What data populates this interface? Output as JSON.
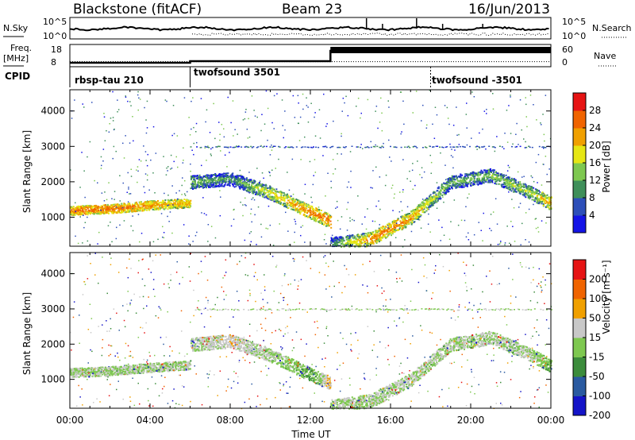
{
  "header": {
    "title": "Blackstone (fitACF)",
    "beam": "Beam 23",
    "date": "16/Jun/2013"
  },
  "panels": {
    "noise": {
      "left_label": "N.Sky",
      "right_label": "N.Search",
      "left_ticks": [
        "10^5",
        "10^0"
      ],
      "right_ticks": [
        "10^5",
        "10^0"
      ]
    },
    "freq": {
      "left_label_1": "Freq.",
      "left_label_2": "[MHz]",
      "right_label": "Nave",
      "left_ticks": [
        "18",
        "8"
      ],
      "right_ticks": [
        "60",
        "0"
      ]
    },
    "cpid": {
      "label": "CPID",
      "segments": [
        {
          "name": "rbsp-tau 210",
          "start_hour": 0
        },
        {
          "name": "twofsound 3501",
          "start_hour": 6
        },
        {
          "name": "twofsound -3501",
          "start_hour": 18
        }
      ]
    },
    "power": {
      "ylabel": "Slant Range [km]",
      "yticks": [
        "4000",
        "3000",
        "2000",
        "1000"
      ],
      "colorbar_label": "Power [dB]",
      "colorbar_ticks": [
        "28",
        "24",
        "20",
        "16",
        "12",
        "8",
        "4"
      ],
      "colors": [
        "#1414e6",
        "#2d4fb9",
        "#3f8f5a",
        "#7ec850",
        "#e6e614",
        "#f0a000",
        "#f06400",
        "#e61414"
      ]
    },
    "velocity": {
      "ylabel": "Slant Range [km]",
      "yticks": [
        "4000",
        "3000",
        "2000",
        "1000"
      ],
      "colorbar_label": "Velocity [m s⁻¹]",
      "colorbar_ticks": [
        "200",
        "100",
        "50",
        "15",
        "-15",
        "-50",
        "-100",
        "-200"
      ],
      "colors": [
        "#1414c8",
        "#2a5aa0",
        "#3c8c3c",
        "#7ec850",
        "#c8c8c8",
        "#f0a000",
        "#f06400",
        "#e61414"
      ]
    }
  },
  "xaxis": {
    "label": "Time UT",
    "ticks": [
      "00:00",
      "04:00",
      "08:00",
      "12:00",
      "16:00",
      "20:00",
      "00:00"
    ]
  },
  "chart_data": [
    {
      "type": "line",
      "title": "",
      "series": [
        {
          "name": "N.Sky"
        },
        {
          "name": "N.Search"
        }
      ],
      "ylabel": "N.Sky",
      "yscale": "log",
      "ylim": [
        1,
        100000
      ],
      "xlim_hours": [
        0,
        24
      ]
    },
    {
      "type": "line",
      "series": [
        {
          "name": "Freq.",
          "x_hours": [
            0,
            6,
            6,
            13,
            13,
            24
          ],
          "values": [
            9.5,
            9.5,
            10.5,
            10.5,
            17,
            17
          ]
        },
        {
          "name": "Nave",
          "x_hours": [
            0,
            24
          ],
          "values": [
            10,
            10
          ]
        }
      ],
      "ylabel": "Freq. [MHz]",
      "ylim": [
        8,
        18
      ]
    },
    {
      "type": "heatmap",
      "title": "",
      "xlabel": "Time UT",
      "ylabel": "Slant Range [km]",
      "xlim_hours": [
        0,
        24
      ],
      "ylim_km": [
        180,
        4600
      ],
      "colorbar": "Power [dB]",
      "zlim": [
        0,
        30
      ],
      "dominant_echo_bands": [
        {
          "x_hours": [
            0,
            2,
            4,
            6
          ],
          "range_km": [
            1200,
            1250,
            1350,
            1420
          ],
          "power_db": [
            24,
            24,
            22,
            20
          ]
        },
        {
          "x_hours": [
            6,
            8,
            10,
            12,
            13
          ],
          "range_km": [
            2000,
            2100,
            1700,
            1150,
            900
          ],
          "power_db": [
            14,
            10,
            18,
            24,
            24
          ]
        },
        {
          "x_hours": [
            13,
            15,
            17,
            19,
            21,
            23,
            24
          ],
          "range_km": [
            250,
            400,
            1000,
            2000,
            2200,
            1700,
            1400
          ],
          "power_db": [
            10,
            24,
            22,
            12,
            14,
            16,
            22
          ]
        }
      ]
    },
    {
      "type": "heatmap",
      "title": "",
      "xlabel": "Time UT",
      "ylabel": "Slant Range [km]",
      "xlim_hours": [
        0,
        24
      ],
      "ylim_km": [
        180,
        4600
      ],
      "colorbar": "Velocity [m s⁻¹]",
      "zlim": [
        -200,
        200
      ],
      "dominant_echo_bands": [
        {
          "x_hours": [
            0,
            2,
            4,
            6
          ],
          "range_km": [
            1200,
            1250,
            1350,
            1420
          ],
          "velocity_ms": [
            0,
            0,
            0,
            0
          ]
        },
        {
          "x_hours": [
            6,
            8,
            10,
            12,
            13
          ],
          "range_km": [
            2000,
            2100,
            1700,
            1150,
            900
          ],
          "velocity_ms": [
            0,
            30,
            0,
            -50,
            60
          ]
        },
        {
          "x_hours": [
            13,
            15,
            17,
            19,
            21,
            23,
            24
          ],
          "range_km": [
            250,
            400,
            1000,
            2000,
            2200,
            1700,
            1400
          ],
          "velocity_ms": [
            0,
            0,
            0,
            0,
            0,
            0,
            -50
          ]
        }
      ]
    }
  ]
}
